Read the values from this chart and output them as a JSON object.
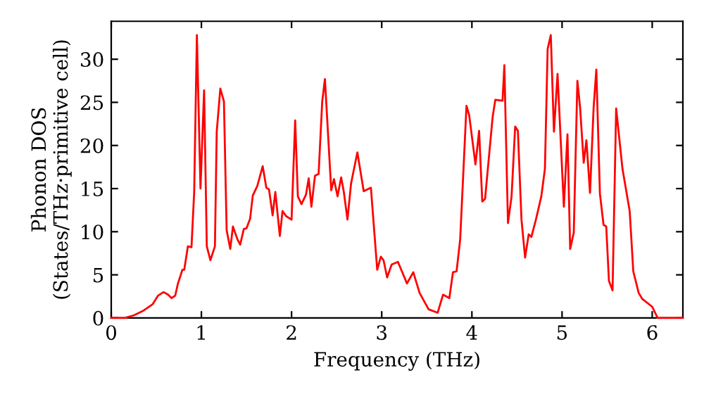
{
  "chart_data": {
    "type": "line",
    "xlabel": "Frequency (THz)",
    "ylabel": "Phonon DOS\n(States/THz·primitive cell)",
    "xlim": [
      0,
      6.34
    ],
    "ylim": [
      0,
      34.4
    ],
    "xticks": [
      0,
      1,
      2,
      3,
      4,
      5,
      6
    ],
    "yticks": [
      0,
      5,
      10,
      15,
      20,
      25,
      30
    ],
    "grid": false,
    "marker": "none",
    "line_style": "solid",
    "series": [
      {
        "color": "#ff0000",
        "x": [
          0,
          0.15,
          0.25,
          0.35,
          0.46,
          0.52,
          0.58,
          0.63,
          0.67,
          0.71,
          0.74,
          0.79,
          0.81,
          0.85,
          0.89,
          0.92,
          0.95,
          0.99,
          1.03,
          1.06,
          1.1,
          1.15,
          1.17,
          1.21,
          1.25,
          1.28,
          1.32,
          1.35,
          1.4,
          1.43,
          1.47,
          1.5,
          1.54,
          1.57,
          1.62,
          1.68,
          1.72,
          1.75,
          1.79,
          1.82,
          1.87,
          1.9,
          1.94,
          2.0,
          2.04,
          2.07,
          2.11,
          2.16,
          2.19,
          2.22,
          2.26,
          2.3,
          2.34,
          2.37,
          2.44,
          2.47,
          2.51,
          2.55,
          2.58,
          2.62,
          2.66,
          2.73,
          2.8,
          2.84,
          2.88,
          2.95,
          2.99,
          3.02,
          3.06,
          3.11,
          3.18,
          3.28,
          3.35,
          3.42,
          3.52,
          3.62,
          3.68,
          3.75,
          3.79,
          3.83,
          3.87,
          3.94,
          3.97,
          4.04,
          4.08,
          4.115,
          4.146,
          4.23,
          4.26,
          4.34,
          4.36,
          4.4,
          4.44,
          4.48,
          4.51,
          4.55,
          4.59,
          4.63,
          4.66,
          4.71,
          4.77,
          4.81,
          4.84,
          4.875,
          4.91,
          4.95,
          5.02,
          5.06,
          5.09,
          5.13,
          5.17,
          5.2,
          5.24,
          5.27,
          5.31,
          5.35,
          5.38,
          5.42,
          5.46,
          5.49,
          5.52,
          5.56,
          5.6,
          5.67,
          5.75,
          5.79,
          5.85,
          5.89,
          6.0,
          6.06,
          6.34
        ],
        "values": [
          0,
          0.0,
          0.3,
          0.8,
          1.6,
          2.6,
          3.0,
          2.7,
          2.3,
          2.6,
          4.0,
          5.6,
          5.6,
          8.3,
          8.2,
          14.6,
          32.8,
          15.0,
          26.4,
          8.3,
          6.7,
          8.3,
          21.6,
          26.6,
          25.1,
          10.2,
          8.0,
          10.6,
          9.1,
          8.5,
          10.3,
          10.4,
          11.5,
          14.2,
          15.3,
          17.6,
          15.1,
          14.9,
          11.9,
          14.6,
          9.5,
          12.4,
          11.8,
          11.4,
          22.9,
          14.1,
          13.2,
          14.3,
          16.2,
          12.9,
          16.5,
          16.7,
          25.1,
          27.7,
          14.8,
          16.1,
          14.1,
          16.3,
          14.6,
          11.4,
          15.6,
          19.2,
          14.7,
          14.9,
          15.1,
          5.6,
          7.1,
          6.7,
          4.7,
          6.2,
          6.5,
          4.0,
          5.3,
          2.9,
          1.0,
          0.6,
          2.7,
          2.3,
          5.3,
          5.4,
          9.1,
          24.6,
          23.5,
          17.8,
          21.7,
          13.5,
          13.8,
          23.3,
          25.3,
          25.2,
          29.3,
          11.0,
          14.1,
          22.2,
          21.7,
          11.4,
          7.0,
          9.7,
          9.4,
          11.4,
          14.1,
          17.3,
          31.2,
          32.8,
          21.6,
          28.3,
          12.9,
          21.3,
          8.0,
          9.9,
          27.5,
          24.4,
          18.0,
          20.6,
          14.5,
          24.4,
          28.8,
          14.4,
          10.8,
          10.6,
          4.3,
          3.2,
          24.3,
          17.3,
          12.4,
          5.4,
          2.9,
          2.2,
          1.3,
          0,
          0
        ]
      }
    ]
  }
}
